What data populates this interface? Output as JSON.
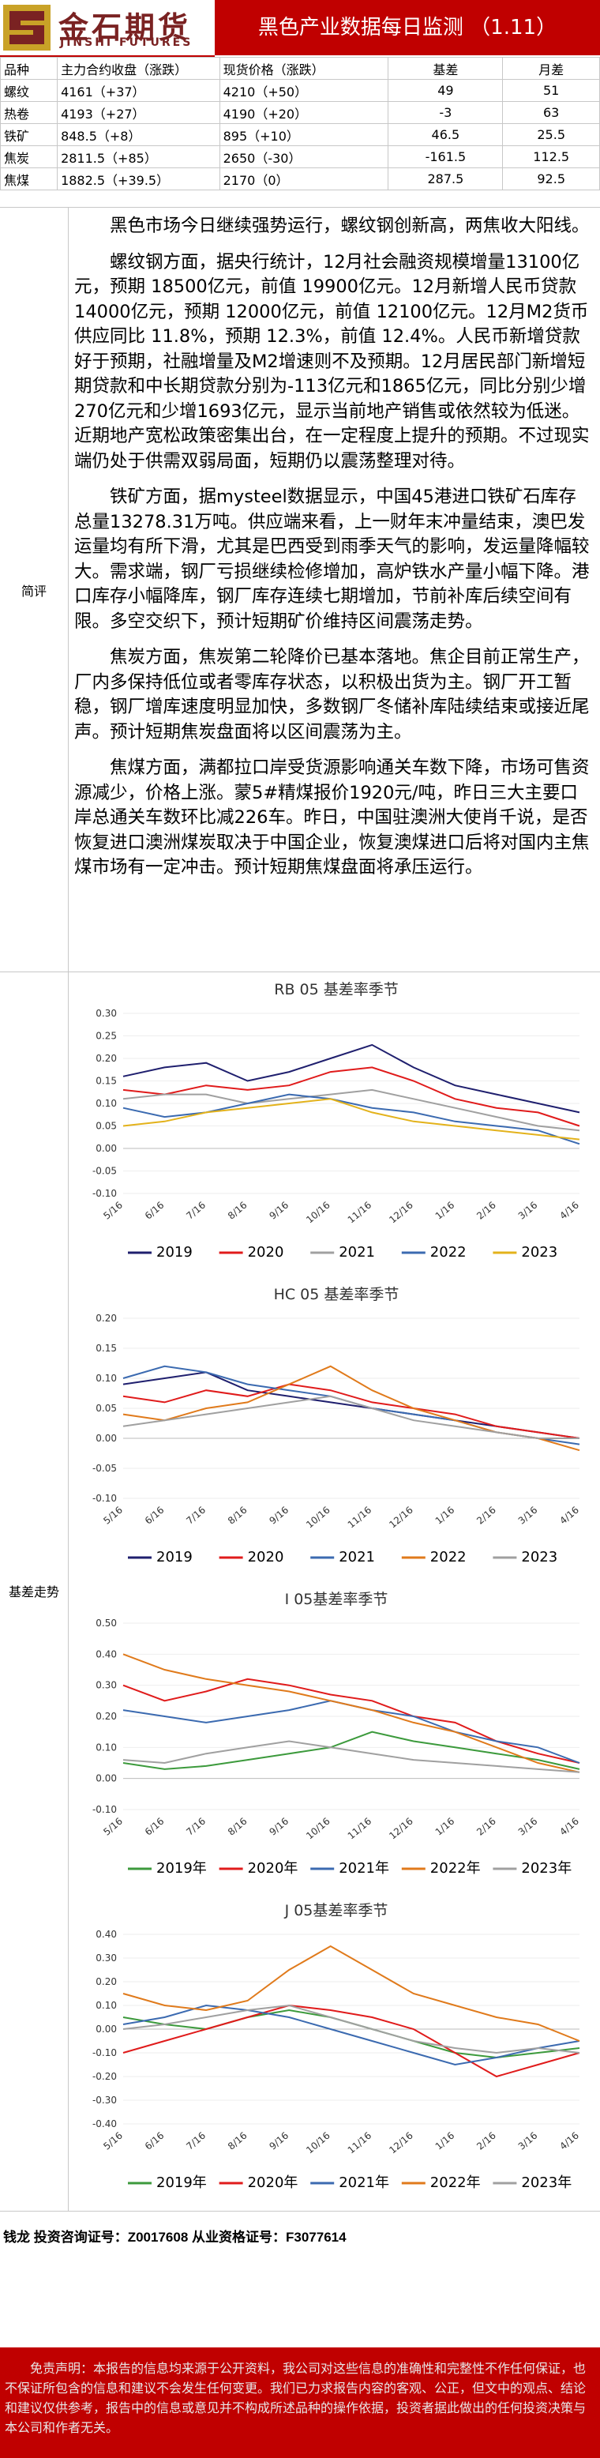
{
  "header": {
    "logo_cn": "金石期货",
    "logo_en": "JINSHI FUTURES",
    "title": "黑色产业数据每日监测 （1.11）"
  },
  "quote_table": {
    "headers": [
      "品种",
      "主力合约收盘（涨跌）",
      "现货价格（涨跌）",
      "基差",
      "月差"
    ],
    "rows": [
      [
        "螺纹",
        "4161（+37）",
        "4210（+50）",
        "49",
        "51"
      ],
      [
        "热卷",
        "4193（+27）",
        "4190（+20）",
        "-3",
        "63"
      ],
      [
        "铁矿",
        "848.5（+8）",
        "895（+10）",
        "46.5",
        "25.5"
      ],
      [
        "焦炭",
        "2811.5（+85）",
        "2650（-30）",
        "-161.5",
        "112.5"
      ],
      [
        "焦煤",
        "1882.5（+39.5）",
        "2170（0）",
        "287.5",
        "92.5"
      ]
    ]
  },
  "review": {
    "label": "简评",
    "paragraphs": [
      "黑色市场今日继续强势运行，螺纹钢创新高，两焦收大阳线。",
      "螺纹钢方面，据央行统计，12月社会融资规模增量13100亿元，预期 18500亿元，前值 19900亿元。12月新增人民币贷款 14000亿元，预期 12000亿元，前值 12100亿元。12月M2货币供应同比 11.8%，预期 12.3%，前值 12.4%。人民币新增贷款好于预期，社融增量及M2增速则不及预期。12月居民部门新增短期贷款和中长期贷款分别为-113亿元和1865亿元，同比分别少增270亿元和少增1693亿元，显示当前地产销售或依然较为低迷。近期地产宽松政策密集出台，在一定程度上提升的预期。不过现实端仍处于供需双弱局面，短期仍以震荡整理对待。",
      "铁矿方面，据mysteel数据显示，中国45港进口铁矿石库存总量13278.31万吨。供应端来看，上一财年末冲量结束，澳巴发运量均有所下滑，尤其是巴西受到雨季天气的影响，发运量降幅较大。需求端，钢厂亏损继续检修增加，高炉铁水产量小幅下降。港口库存小幅降库，钢厂库存连续七期增加，节前补库后续空间有限。多空交织下，预计短期矿价维持区间震荡走势。",
      "焦炭方面，焦炭第二轮降价已基本落地。焦企目前正常生产，厂内多保持低位或者零库存状态，以积极出货为主。钢厂开工暂稳，钢厂增库速度明显加快，多数钢厂冬储补库陆续结束或接近尾声。预计短期焦炭盘面将以区间震荡为主。",
      "焦煤方面，满都拉口岸受货源影响通关车数下降，市场可售资源减少，价格上涨。蒙5#精煤报价1920元/吨，昨日三大主要口岸总通关车数环比减226车。昨日，中国驻澳洲大使肖千说，是否恢复进口澳洲煤炭取决于中国企业，恢复澳煤进口后将对国内主焦煤市场有一定冲击。预计短期焦煤盘面将承压运行。"
    ]
  },
  "basis_section_label": "基差走势",
  "charts_meta": {
    "x_ticks": [
      "5/16",
      "6/16",
      "7/16",
      "8/16",
      "9/16",
      "10/16",
      "11/16",
      "12/16",
      "1/16",
      "2/16",
      "3/16",
      "4/16"
    ]
  },
  "chart_data": [
    {
      "type": "line",
      "title": "RB 05 基差率季节",
      "xlabel": "",
      "ylabel": "",
      "ylim": [
        -0.1,
        0.3
      ],
      "yticks": [
        "0.30",
        "0.25",
        "0.20",
        "0.15",
        "0.10",
        "0.05",
        "0.00",
        "-0.05",
        "-0.10"
      ],
      "legend": "bottom",
      "series": [
        {
          "name": "2019",
          "color": "#1f1f6e",
          "values": [
            0.16,
            0.18,
            0.19,
            0.15,
            0.17,
            0.2,
            0.23,
            0.18,
            0.14,
            0.12,
            0.1,
            0.08
          ]
        },
        {
          "name": "2020",
          "color": "#e01b1b",
          "values": [
            0.13,
            0.12,
            0.14,
            0.13,
            0.14,
            0.17,
            0.18,
            0.15,
            0.11,
            0.09,
            0.08,
            0.05
          ]
        },
        {
          "name": "2021",
          "color": "#a0a0a0",
          "values": [
            0.11,
            0.12,
            0.12,
            0.1,
            0.11,
            0.12,
            0.13,
            0.11,
            0.09,
            0.07,
            0.05,
            0.04
          ]
        },
        {
          "name": "2022",
          "color": "#3b6ab0",
          "values": [
            0.09,
            0.07,
            0.08,
            0.1,
            0.12,
            0.11,
            0.09,
            0.08,
            0.06,
            0.05,
            0.04,
            0.01
          ]
        },
        {
          "name": "2023",
          "color": "#e3b21b",
          "values": [
            0.05,
            0.06,
            0.08,
            0.09,
            0.1,
            0.11,
            0.08,
            0.06,
            0.05,
            0.04,
            0.03,
            0.02
          ]
        }
      ]
    },
    {
      "type": "line",
      "title": "HC 05 基差率季节",
      "xlabel": "",
      "ylabel": "",
      "ylim": [
        -0.1,
        0.2
      ],
      "yticks": [
        "0.20",
        "0.15",
        "0.10",
        "0.05",
        "0.00",
        "-0.05",
        "-0.10"
      ],
      "legend": "bottom",
      "series": [
        {
          "name": "2019",
          "color": "#1f1f6e",
          "values": [
            0.09,
            0.1,
            0.11,
            0.08,
            0.07,
            0.06,
            0.05,
            0.04,
            0.03,
            0.02,
            0.01,
            0.0
          ]
        },
        {
          "name": "2020",
          "color": "#e01b1b",
          "values": [
            0.07,
            0.06,
            0.08,
            0.07,
            0.09,
            0.08,
            0.06,
            0.05,
            0.04,
            0.02,
            0.01,
            0.0
          ]
        },
        {
          "name": "2021",
          "color": "#3b6ab0",
          "values": [
            0.1,
            0.12,
            0.11,
            0.09,
            0.08,
            0.07,
            0.05,
            0.04,
            0.03,
            0.01,
            0.0,
            -0.01
          ]
        },
        {
          "name": "2022",
          "color": "#e07a1b",
          "values": [
            0.04,
            0.03,
            0.05,
            0.06,
            0.09,
            0.12,
            0.08,
            0.05,
            0.03,
            0.01,
            0.0,
            -0.02
          ]
        },
        {
          "name": "2023",
          "color": "#a0a0a0",
          "values": [
            0.02,
            0.03,
            0.04,
            0.05,
            0.06,
            0.07,
            0.05,
            0.03,
            0.02,
            0.01,
            0.0,
            0.0
          ]
        }
      ]
    },
    {
      "type": "line",
      "title": "I 05基差率季节",
      "xlabel": "",
      "ylabel": "",
      "ylim": [
        -0.1,
        0.5
      ],
      "yticks": [
        "0.50",
        "0.40",
        "0.30",
        "0.20",
        "0.10",
        "0.00",
        "-0.10"
      ],
      "legend": "bottom",
      "series": [
        {
          "name": "2019年",
          "color": "#3c9a3c",
          "values": [
            0.05,
            0.03,
            0.04,
            0.06,
            0.08,
            0.1,
            0.15,
            0.12,
            0.1,
            0.08,
            0.06,
            0.03
          ]
        },
        {
          "name": "2020年",
          "color": "#e01b1b",
          "values": [
            0.3,
            0.25,
            0.28,
            0.32,
            0.3,
            0.27,
            0.25,
            0.2,
            0.18,
            0.12,
            0.08,
            0.05
          ]
        },
        {
          "name": "2021年",
          "color": "#3b6ab0",
          "values": [
            0.22,
            0.2,
            0.18,
            0.2,
            0.22,
            0.25,
            0.22,
            0.2,
            0.15,
            0.12,
            0.1,
            0.05
          ]
        },
        {
          "name": "2022年",
          "color": "#e07a1b",
          "values": [
            0.4,
            0.35,
            0.32,
            0.3,
            0.28,
            0.25,
            0.22,
            0.18,
            0.15,
            0.1,
            0.05,
            0.02
          ]
        },
        {
          "name": "2023年",
          "color": "#a0a0a0",
          "values": [
            0.06,
            0.05,
            0.08,
            0.1,
            0.12,
            0.1,
            0.08,
            0.06,
            0.05,
            0.04,
            0.03,
            0.02
          ]
        }
      ]
    },
    {
      "type": "line",
      "title": "J 05基差率季节",
      "xlabel": "",
      "ylabel": "",
      "ylim": [
        -0.4,
        0.4
      ],
      "yticks": [
        "0.40",
        "0.30",
        "0.20",
        "0.10",
        "0.00",
        "-0.10",
        "-0.20",
        "-0.30",
        "-0.40"
      ],
      "legend": "bottom",
      "series": [
        {
          "name": "2019年",
          "color": "#3c9a3c",
          "values": [
            0.05,
            0.02,
            0.0,
            0.05,
            0.08,
            0.05,
            0.0,
            -0.05,
            -0.1,
            -0.12,
            -0.1,
            -0.08
          ]
        },
        {
          "name": "2020年",
          "color": "#e01b1b",
          "values": [
            -0.1,
            -0.05,
            0.0,
            0.05,
            0.1,
            0.08,
            0.05,
            0.0,
            -0.1,
            -0.2,
            -0.15,
            -0.1
          ]
        },
        {
          "name": "2021年",
          "color": "#3b6ab0",
          "values": [
            0.02,
            0.05,
            0.1,
            0.08,
            0.05,
            0.0,
            -0.05,
            -0.1,
            -0.15,
            -0.12,
            -0.08,
            -0.05
          ]
        },
        {
          "name": "2022年",
          "color": "#e07a1b",
          "values": [
            0.15,
            0.1,
            0.08,
            0.12,
            0.25,
            0.35,
            0.25,
            0.15,
            0.1,
            0.05,
            0.02,
            -0.05
          ]
        },
        {
          "name": "2023年",
          "color": "#a0a0a0",
          "values": [
            0.0,
            0.02,
            0.05,
            0.08,
            0.1,
            0.05,
            0.0,
            -0.05,
            -0.08,
            -0.1,
            -0.08,
            -0.1
          ]
        }
      ]
    }
  ],
  "analyst": "钱龙  投资咨询证号：Z0017608  从业资格证号：F3077614",
  "disclaimer": "免责声明：本报告的信息均来源于公开资料，我公司对这些信息的准确性和完整性不作任何保证，也不保证所包含的信息和建议不会发生任何变更。我们已力求报告内容的客观、公正，但文中的观点、结论和建议仅供参考，报告中的信息或意见并不构成所述品种的操作依据，投资者据此做出的任何投资决策与本公司和作者无关。"
}
